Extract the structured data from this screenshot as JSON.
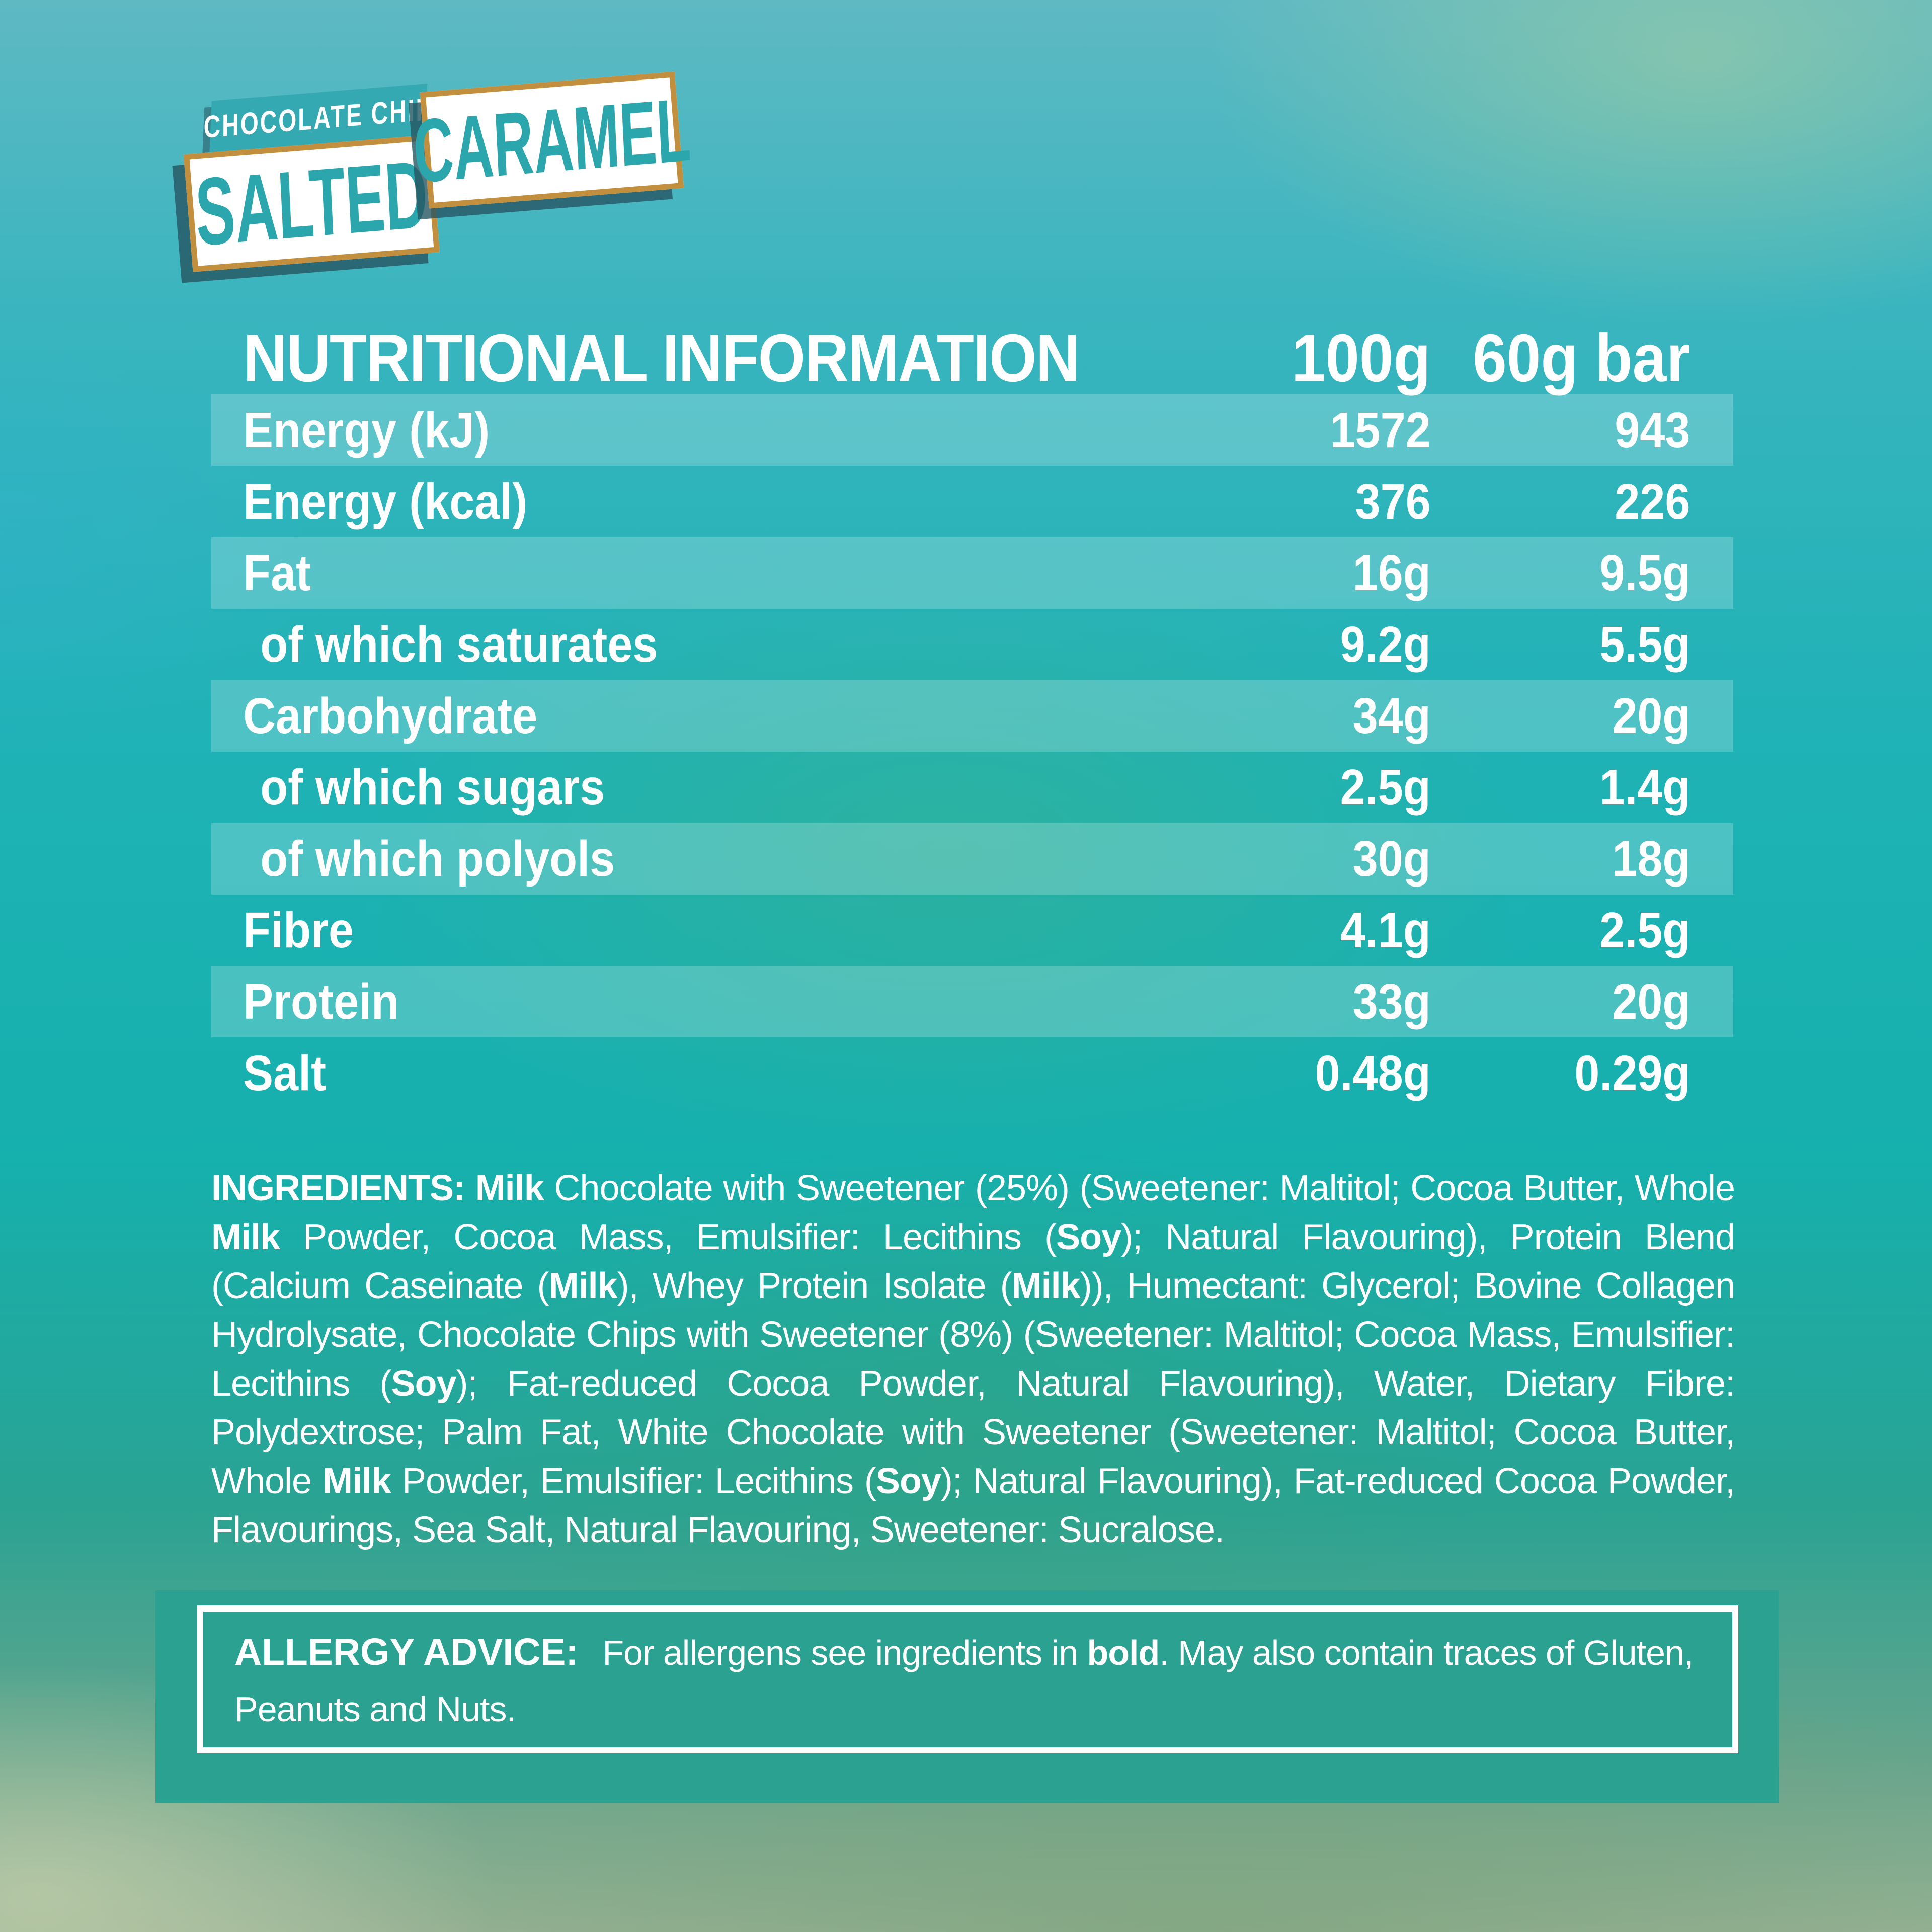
{
  "colors": {
    "accent": "#2aa6ac",
    "banner": "#35a9b2",
    "tan": "#c28f3e",
    "allergy": "#2ba191",
    "stripe": "rgba(255,255,255,0.21)"
  },
  "logo": {
    "tagline": "CHOCOLATE CHIP",
    "flavour_word1": "SALTED",
    "flavour_word2": "CARAMEL"
  },
  "table": {
    "title": "NUTRITIONAL INFORMATION",
    "col1": "100g",
    "col2": "60g bar",
    "rows": [
      {
        "label": "Energy (kJ)",
        "v1": "1572",
        "v2": "943",
        "indent": false
      },
      {
        "label": "Energy (kcal)",
        "v1": "376",
        "v2": "226",
        "indent": false
      },
      {
        "label": "Fat",
        "v1": "16g",
        "v2": "9.5g",
        "indent": false
      },
      {
        "label": "of which saturates",
        "v1": "9.2g",
        "v2": "5.5g",
        "indent": true
      },
      {
        "label": "Carbohydrate",
        "v1": "34g",
        "v2": "20g",
        "indent": false
      },
      {
        "label": "of which sugars",
        "v1": "2.5g",
        "v2": "1.4g",
        "indent": true
      },
      {
        "label": "of which polyols",
        "v1": "30g",
        "v2": "18g",
        "indent": true
      },
      {
        "label": "Fibre",
        "v1": "4.1g",
        "v2": "2.5g",
        "indent": false
      },
      {
        "label": "Protein",
        "v1": "33g",
        "v2": "20g",
        "indent": false
      },
      {
        "label": "Salt",
        "v1": "0.48g",
        "v2": "0.29g",
        "indent": false
      }
    ]
  },
  "ingredients": {
    "segments": [
      {
        "t": "INGREDIENTS: Milk",
        "b": true
      },
      {
        "t": " Chocolate with Sweetener (25%) (Sweetener: Maltitol; Cocoa Butter, Whole ",
        "b": false
      },
      {
        "t": "Milk",
        "b": true
      },
      {
        "t": " Powder, Cocoa Mass, Emulsifier: Lecithins (",
        "b": false
      },
      {
        "t": "Soy",
        "b": true
      },
      {
        "t": "); Natural Flavouring), Protein Blend (Calcium Caseinate (",
        "b": false
      },
      {
        "t": "Milk",
        "b": true
      },
      {
        "t": "), Whey Protein Isolate (",
        "b": false
      },
      {
        "t": "Milk",
        "b": true
      },
      {
        "t": ")), Humectant: Glycerol; Bovine Collagen Hydrolysate, Chocolate Chips with Sweetener (8%) (Sweetener: Maltitol; Cocoa Mass, Emulsifier: Lecithins (",
        "b": false
      },
      {
        "t": "Soy",
        "b": true
      },
      {
        "t": "); Fat-reduced Cocoa Powder, Natural Flavouring), Water, Dietary Fibre: Polydextrose; Palm Fat, White Chocolate with Sweetener (Sweetener: Maltitol; Cocoa Butter, Whole ",
        "b": false
      },
      {
        "t": "Milk",
        "b": true
      },
      {
        "t": " Powder, Emulsifier: Lecithins (",
        "b": false
      },
      {
        "t": "Soy",
        "b": true
      },
      {
        "t": "); Natural Flavouring), Fat-reduced Cocoa Powder, Flavourings, Sea Salt, Natural Flavouring, Sweetener: Sucralose.",
        "b": false
      }
    ]
  },
  "allergy": {
    "heading": "ALLERGY ADVICE:",
    "segments": [
      {
        "t": "For allergens see ingredients in ",
        "b": false
      },
      {
        "t": "bold",
        "b": true
      },
      {
        "t": ". May also contain traces of Gluten, Peanuts and Nuts.",
        "b": false
      }
    ]
  }
}
